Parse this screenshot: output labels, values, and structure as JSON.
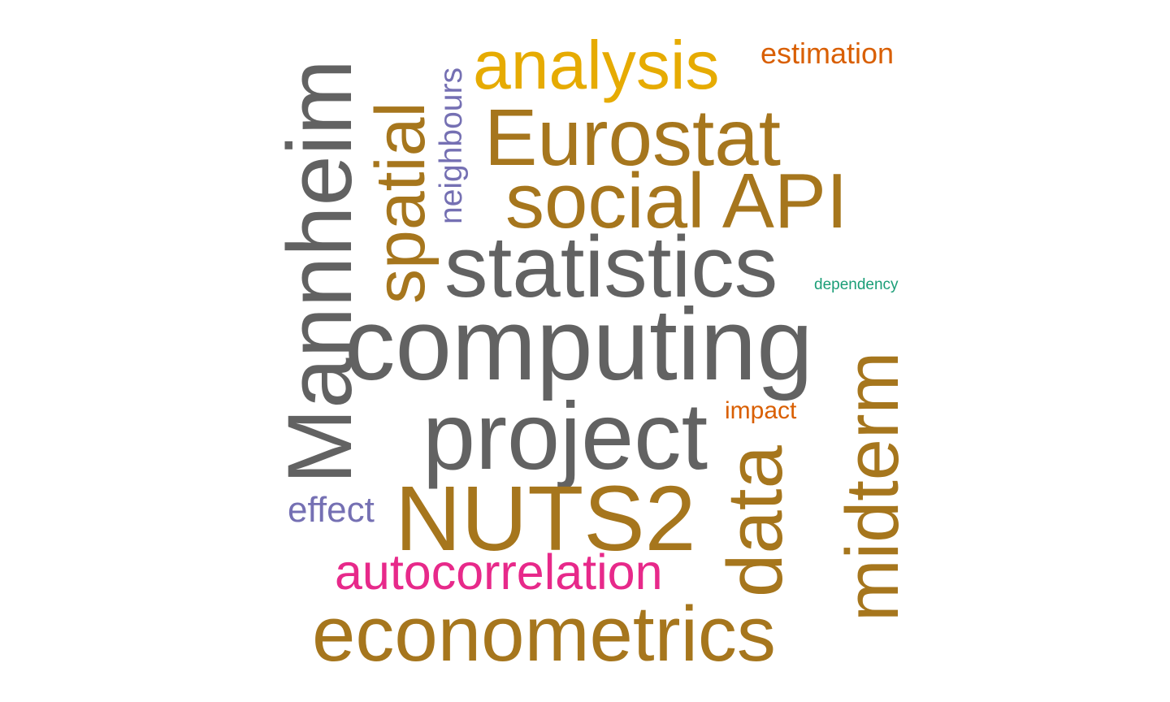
{
  "word_cloud": {
    "words": [
      {
        "key": "computing",
        "text": "computing",
        "color": "#626262"
      },
      {
        "key": "statistics",
        "text": "statistics",
        "color": "#626262"
      },
      {
        "key": "project",
        "text": "project",
        "color": "#626262"
      },
      {
        "key": "mannheim",
        "text": "Mannheim",
        "color": "#626262"
      },
      {
        "key": "nuts2",
        "text": "NUTS2",
        "color": "#A6761D"
      },
      {
        "key": "eurostat",
        "text": "Eurostat",
        "color": "#A6761D"
      },
      {
        "key": "social_api",
        "text": "social API",
        "color": "#A6761D"
      },
      {
        "key": "econometrics",
        "text": "econometrics",
        "color": "#A6761D"
      },
      {
        "key": "spatial",
        "text": "spatial",
        "color": "#A6761D"
      },
      {
        "key": "midterm",
        "text": "midterm",
        "color": "#A6761D"
      },
      {
        "key": "data",
        "text": "data",
        "color": "#A6761D"
      },
      {
        "key": "analysis",
        "text": "analysis",
        "color": "#E6AB02"
      },
      {
        "key": "autocorrelation",
        "text": "autocorrelation",
        "color": "#E7298A"
      },
      {
        "key": "neighbours",
        "text": "neighbours",
        "color": "#7570B3"
      },
      {
        "key": "effect",
        "text": "effect",
        "color": "#7570B3"
      },
      {
        "key": "estimation",
        "text": "estimation",
        "color": "#D95F02"
      },
      {
        "key": "impact",
        "text": "impact",
        "color": "#D95F02"
      },
      {
        "key": "dependency",
        "text": "dependency",
        "color": "#1B9E77"
      }
    ]
  }
}
